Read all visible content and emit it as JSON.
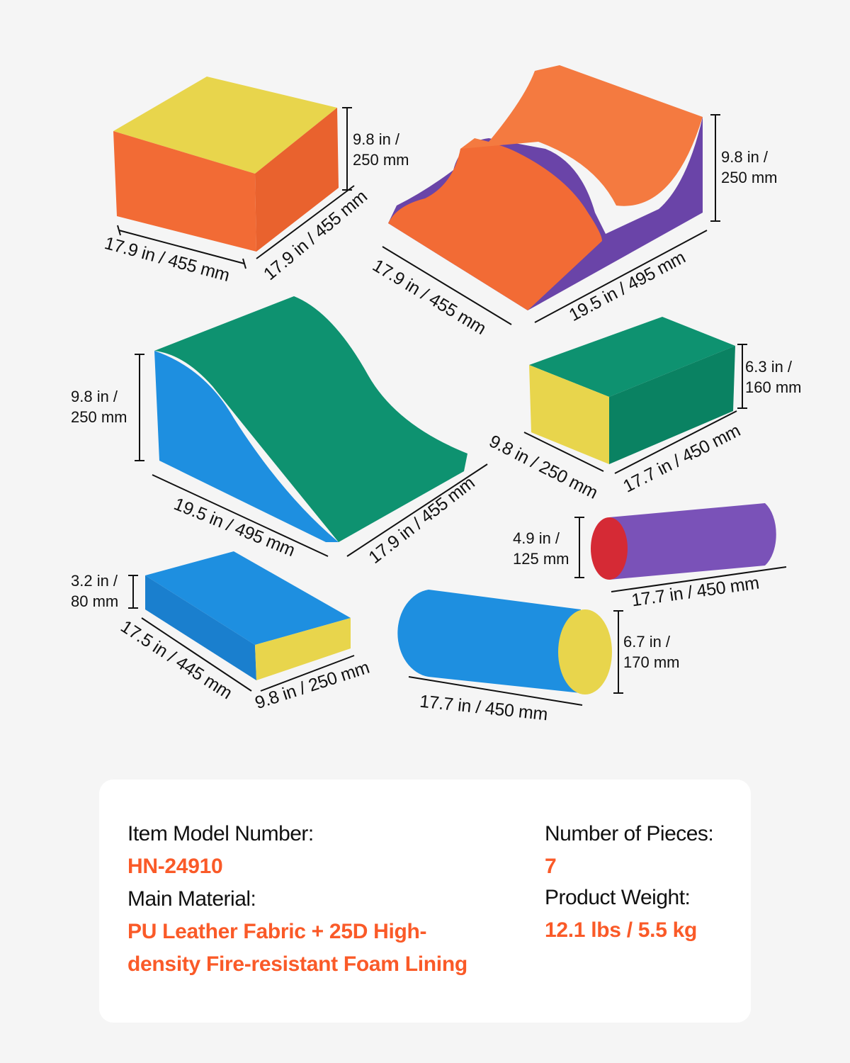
{
  "colors": {
    "accent": "#fa5a28",
    "orange": "#f26b35",
    "yellow": "#e8d54c",
    "green": "#0e9270",
    "blue": "#1e8fe0",
    "purple": "#6a44a8",
    "red": "#d52a35"
  },
  "dimensions": [
    {
      "l1": "9.8 in /",
      "l2": "250 mm"
    },
    {
      "text": "17.9 in / 455 mm"
    },
    {
      "text": "17.9 in / 455 mm"
    },
    {
      "l1": "9.8 in /",
      "l2": "250 mm"
    },
    {
      "text": "17.9 in / 455 mm"
    },
    {
      "text": "19.5 in / 495 mm"
    },
    {
      "l1": "9.8 in /",
      "l2": "250 mm"
    },
    {
      "text": "19.5 in / 495 mm"
    },
    {
      "text": "17.9 in / 455 mm"
    },
    {
      "l1": "6.3 in /",
      "l2": "160 mm"
    },
    {
      "text": "9.8 in / 250 mm"
    },
    {
      "text": "17.7 in / 450 mm"
    },
    {
      "l1": "4.9 in /",
      "l2": "125 mm"
    },
    {
      "text": "17.7 in / 450 mm"
    },
    {
      "l1": "3.2 in /",
      "l2": "80 mm"
    },
    {
      "text": "17.5 in / 445 mm"
    },
    {
      "text": "9.8 in / 250 mm"
    },
    {
      "l1": "6.7 in /",
      "l2": "170 mm"
    },
    {
      "text": "17.7 in / 450 mm"
    }
  ],
  "specs": {
    "model_label": "Item Model Number:",
    "model_value": "HN-24910",
    "material_label": "Main Material:",
    "material_value": "PU Leather Fabric + 25D High-density Fire-resistant Foam Lining",
    "pieces_label": "Number of Pieces:",
    "pieces_value": "7",
    "weight_label": "Product Weight:",
    "weight_value": "12.1 lbs / 5.5 kg"
  }
}
